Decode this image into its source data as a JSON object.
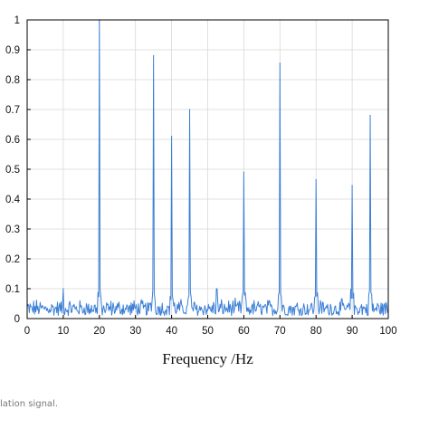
{
  "colors": {
    "series": "#3b7fd6",
    "grid": "#d9d9d9",
    "axis": "#000000"
  },
  "caption": "lation signal.",
  "chart_data": {
    "type": "line",
    "title": "",
    "xlabel": "Frequency  /Hz",
    "ylabel": "",
    "xlim": [
      0,
      100
    ],
    "ylim": [
      0,
      1
    ],
    "xticks": [
      0,
      10,
      20,
      30,
      40,
      50,
      60,
      70,
      80,
      90,
      100
    ],
    "yticks": [
      0,
      0.1,
      0.2,
      0.3,
      0.4,
      0.5,
      0.6,
      0.7,
      0.8,
      0.9,
      1
    ],
    "ytick_labels": [
      "0",
      "0.1",
      "0.2",
      "0.3",
      "0.4",
      "0.5",
      "0.6",
      "0.7",
      "0.8",
      "0.9",
      "1"
    ],
    "grid": true,
    "noise_floor": [
      0.01,
      0.07
    ],
    "peaks": [
      {
        "x": 10,
        "y": 0.1
      },
      {
        "x": 20,
        "y": 1.0
      },
      {
        "x": 35,
        "y": 0.88
      },
      {
        "x": 40,
        "y": 0.61
      },
      {
        "x": 45,
        "y": 0.7
      },
      {
        "x": 52.5,
        "y": 0.1
      },
      {
        "x": 60,
        "y": 0.49
      },
      {
        "x": 70,
        "y": 0.855
      },
      {
        "x": 80,
        "y": 0.465
      },
      {
        "x": 90,
        "y": 0.445
      },
      {
        "x": 95,
        "y": 0.68
      }
    ]
  }
}
